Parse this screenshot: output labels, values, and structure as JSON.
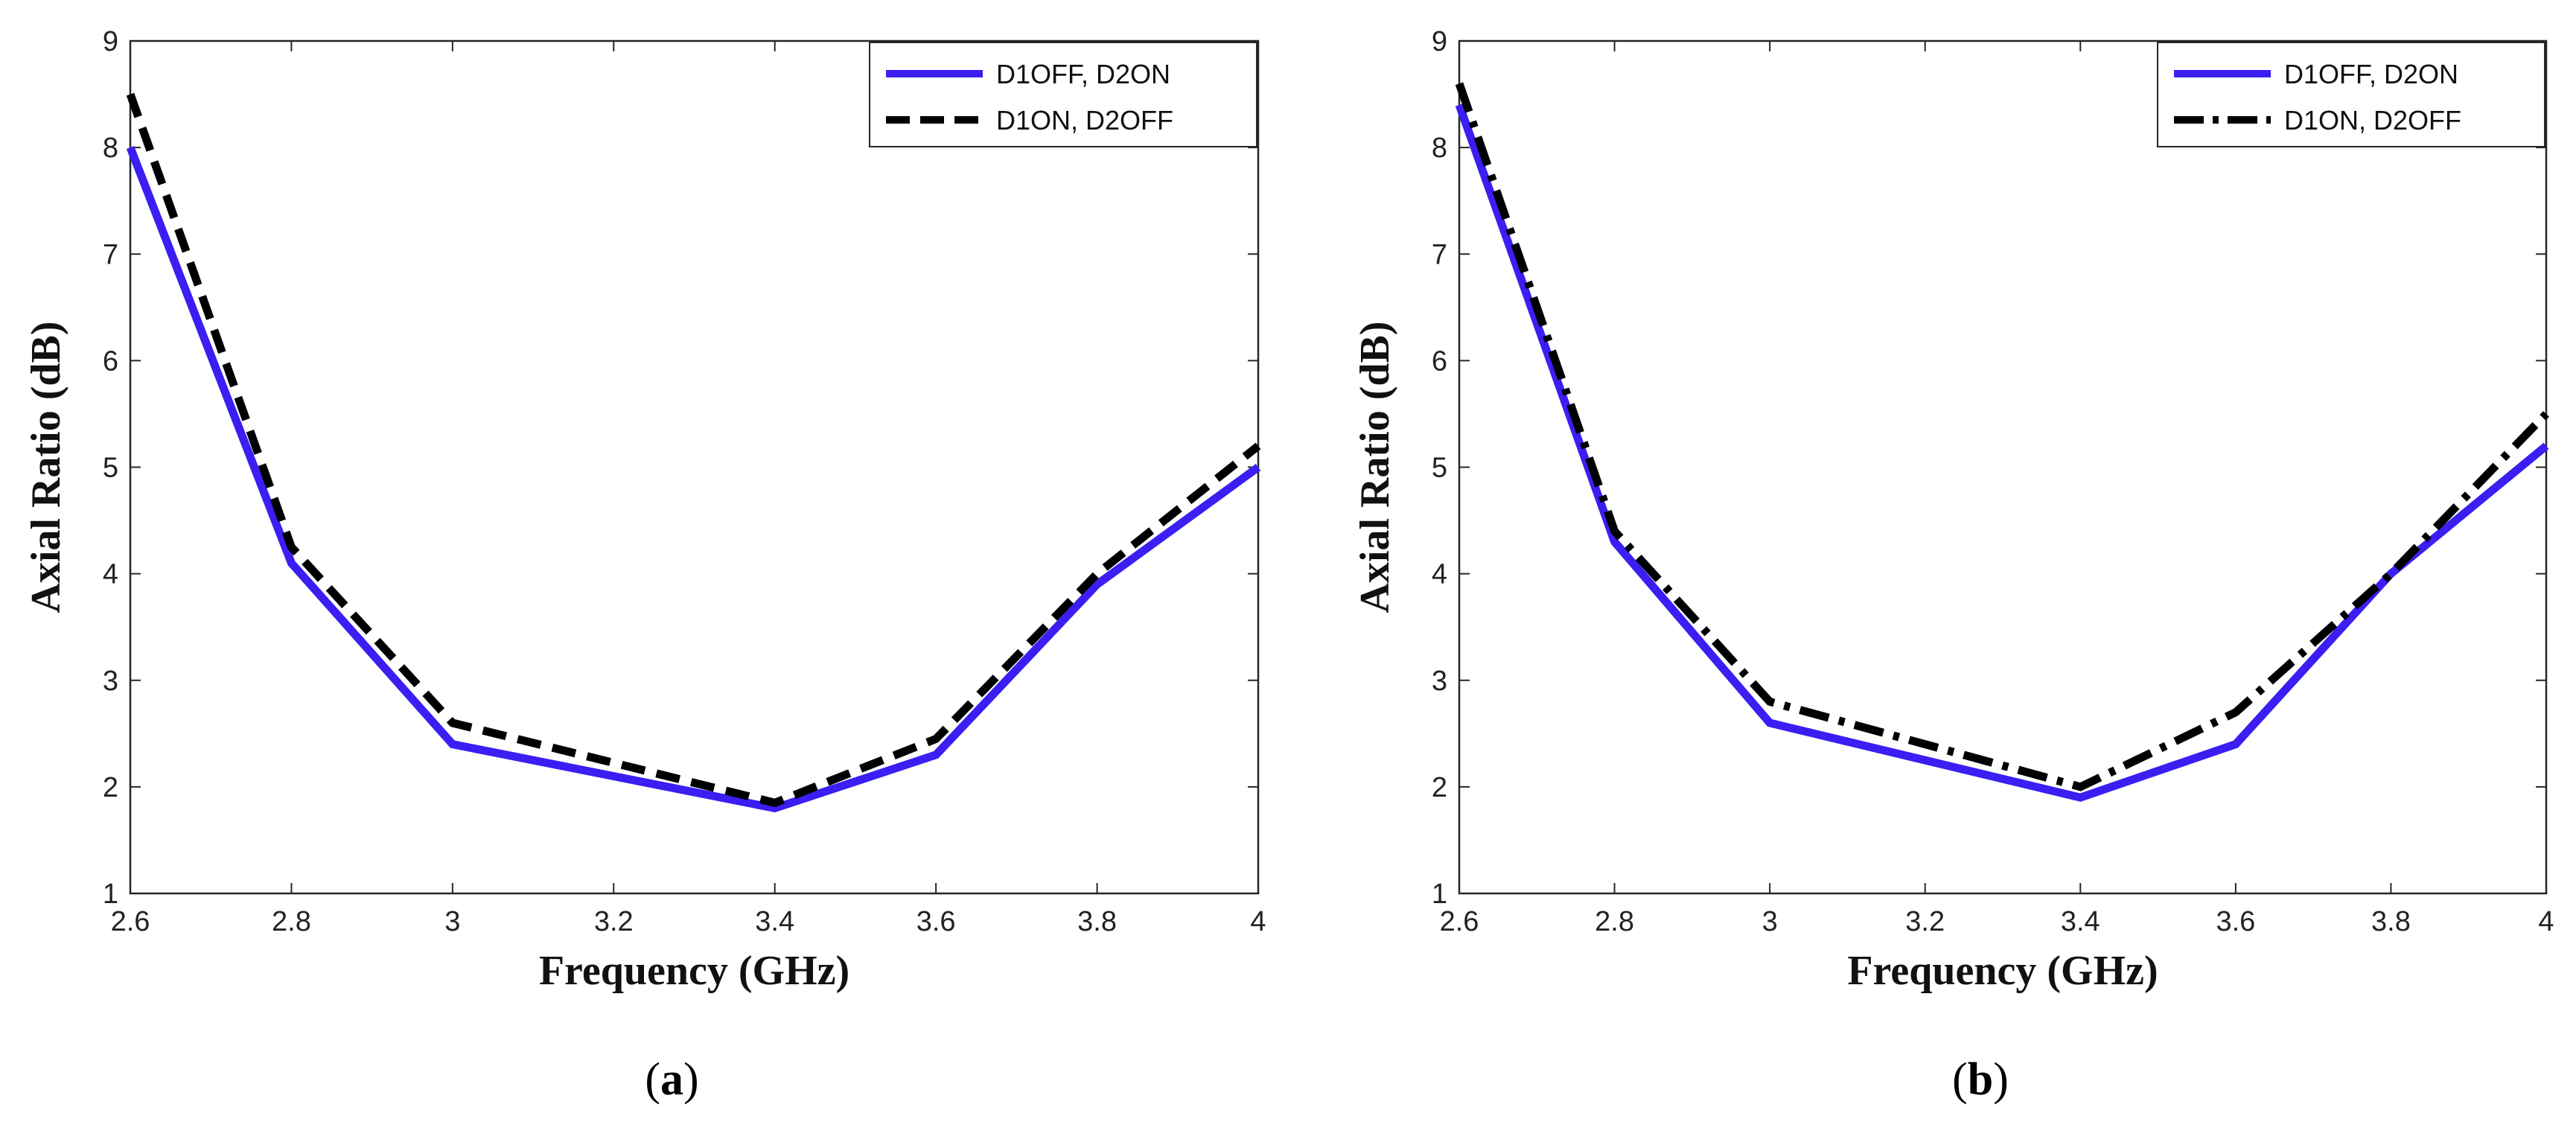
{
  "chart_data": [
    {
      "type": "line",
      "caption": [
        "(",
        "a",
        ")"
      ],
      "xlabel": "Frequency (GHz)",
      "ylabel": "Axial Ratio (dB)",
      "xlim": [
        2.6,
        4
      ],
      "ylim": [
        1,
        9
      ],
      "xticks": [
        "2.6",
        "2.8",
        "3",
        "3.2",
        "3.4",
        "3.6",
        "3.8",
        "4"
      ],
      "yticks": [
        "1",
        "2",
        "3",
        "4",
        "5",
        "6",
        "7",
        "8",
        "9"
      ],
      "legend_position": "top-right",
      "x": [
        2.6,
        2.8,
        3.0,
        3.4,
        3.6,
        3.8,
        4.0
      ],
      "series": [
        {
          "name": "D1OFF, D2ON",
          "color": "#3b1ef2",
          "style": "solid",
          "values": [
            8.0,
            4.1,
            2.4,
            1.8,
            2.3,
            3.9,
            5.0
          ]
        },
        {
          "name": "D1ON, D2OFF",
          "color": "#000000",
          "style": "dashed",
          "values": [
            8.5,
            4.25,
            2.6,
            1.85,
            2.45,
            4.0,
            5.2
          ]
        }
      ]
    },
    {
      "type": "line",
      "caption": [
        "(",
        "b",
        ")"
      ],
      "xlabel": "Frequency (GHz)",
      "ylabel": "Axial Ratio (dB)",
      "xlim": [
        2.6,
        4
      ],
      "ylim": [
        1,
        9
      ],
      "xticks": [
        "2.6",
        "2.8",
        "3",
        "3.2",
        "3.4",
        "3.6",
        "3.8",
        "4"
      ],
      "yticks": [
        "1",
        "2",
        "3",
        "4",
        "5",
        "6",
        "7",
        "8",
        "9"
      ],
      "legend_position": "top-right",
      "x": [
        2.6,
        2.8,
        3.0,
        3.4,
        3.6,
        3.8,
        4.0
      ],
      "series": [
        {
          "name": "D1OFF, D2ON",
          "color": "#3b1ef2",
          "style": "solid",
          "values": [
            8.4,
            4.3,
            2.6,
            1.9,
            2.4,
            4.0,
            5.2
          ]
        },
        {
          "name": "D1ON, D2OFF",
          "color": "#000000",
          "style": "dashdot",
          "values": [
            8.6,
            4.4,
            2.8,
            2.0,
            2.7,
            4.0,
            5.5
          ]
        }
      ]
    }
  ]
}
